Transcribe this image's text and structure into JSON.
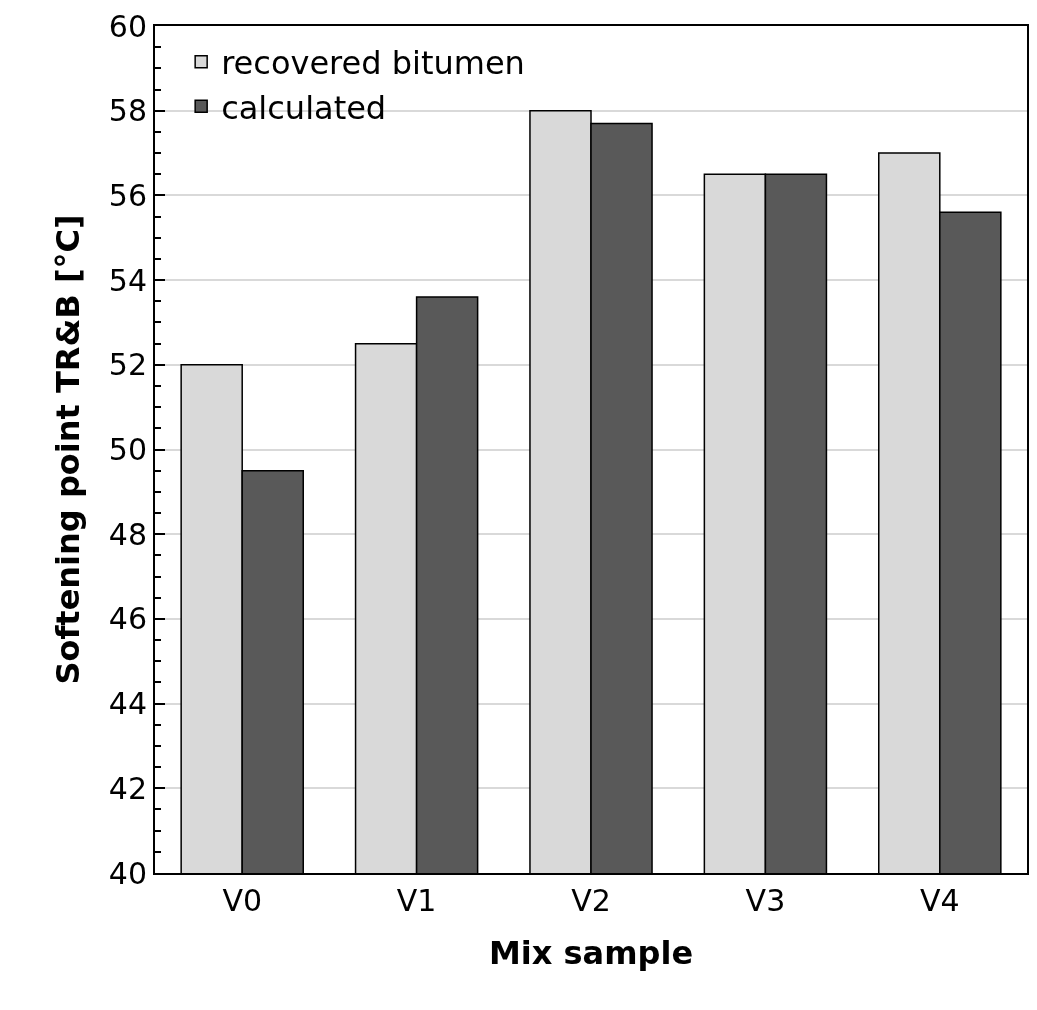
{
  "chart_data": {
    "type": "bar",
    "xlabel": "Mix sample",
    "ylabel": "Softening point TR&B [°C]",
    "categories": [
      "V0",
      "V1",
      "V2",
      "V3",
      "V4"
    ],
    "series": [
      {
        "name": "recovered bitumen",
        "color": "#d9d9d9",
        "values": [
          52.0,
          52.5,
          58.0,
          56.5,
          57.0
        ]
      },
      {
        "name": "calculated",
        "color": "#595959",
        "values": [
          49.5,
          53.6,
          57.7,
          56.5,
          55.6
        ]
      }
    ],
    "ylim": [
      40,
      60
    ],
    "yticks": [
      40,
      42,
      44,
      46,
      48,
      50,
      52,
      54,
      56,
      58,
      60
    ],
    "grid": "y",
    "legend": "top left"
  }
}
